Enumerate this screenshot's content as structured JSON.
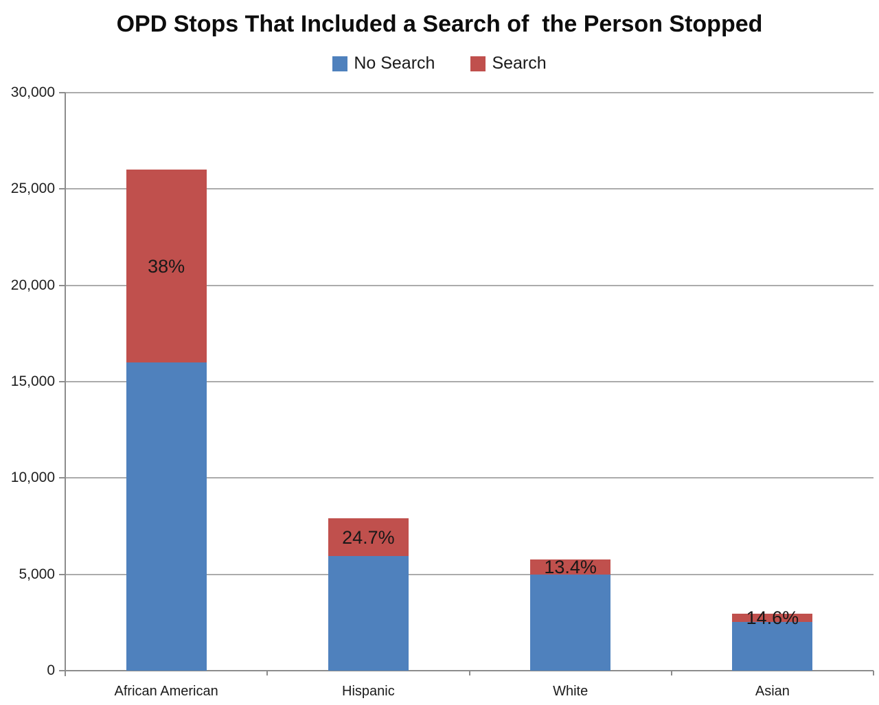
{
  "chart_data": {
    "type": "bar",
    "stacked": true,
    "title": "OPD Stops That Included a Search of  the Person Stopped",
    "categories": [
      "African American",
      "Hispanic",
      "White",
      "Asian"
    ],
    "series": [
      {
        "name": "No Search",
        "color": "#4f81bd",
        "values": [
          16000,
          5950,
          5000,
          2520
        ]
      },
      {
        "name": "Search",
        "color": "#c0504d",
        "values": [
          10000,
          1950,
          775,
          430
        ],
        "data_labels": [
          "38%",
          "24.7%",
          "13.4%",
          "14.6%"
        ]
      }
    ],
    "totals": [
      26000,
      7900,
      5775,
      2950
    ],
    "xlabel": "",
    "ylabel": "",
    "ylim": [
      0,
      30000
    ],
    "ytick_interval": 5000,
    "ytick_labels": [
      "0",
      "5,000",
      "10,000",
      "15,000",
      "20,000",
      "25,000",
      "30,000"
    ],
    "grid": true,
    "legend_position": "top"
  },
  "colors": {
    "no_search": "#4f81bd",
    "search": "#c0504d",
    "gridline": "#ababab",
    "axis": "#8c8c8c",
    "background": "#ffffff",
    "text": "#111111"
  }
}
